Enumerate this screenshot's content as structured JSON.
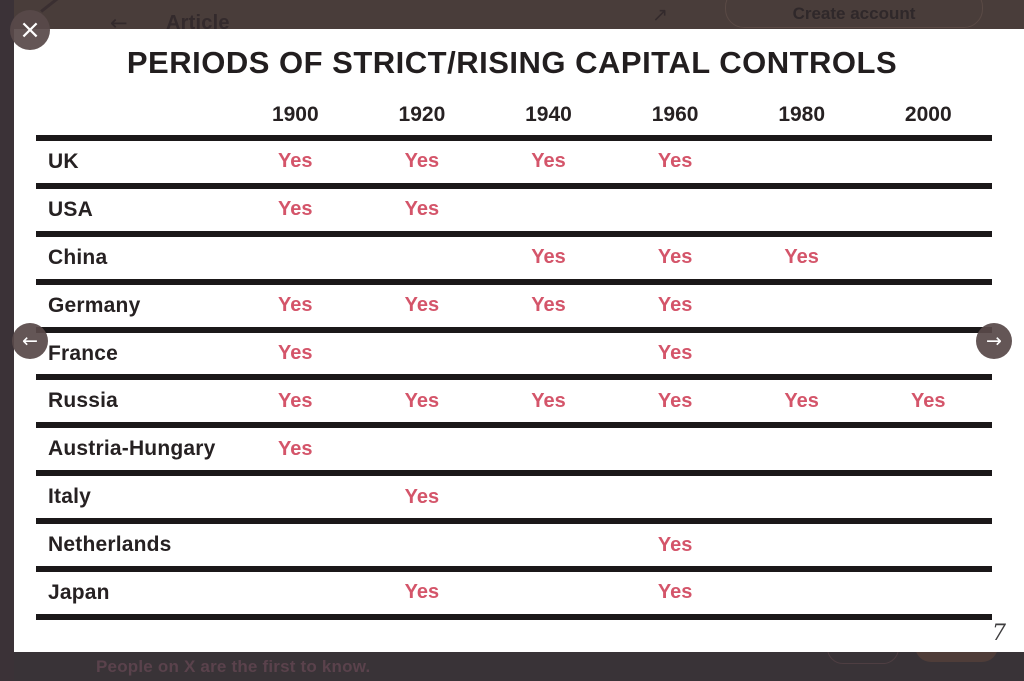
{
  "page_behind": {
    "top_bar": {
      "back_icon": "←",
      "title": "Article",
      "share_icon": "↗",
      "create_account_label": "Create account"
    },
    "bottom_banner": {
      "message": "People on X are the first to know."
    }
  },
  "lightbox": {
    "close_icon": "×",
    "prev_icon": "←",
    "next_icon": "→",
    "page_number": "7"
  },
  "chart_data": {
    "type": "table",
    "title": "PERIODS OF STRICT/RISING CAPITAL CONTROLS",
    "categories": [
      "1900",
      "1920",
      "1940",
      "1960",
      "1980",
      "2000"
    ],
    "rows": [
      {
        "label": "UK",
        "values": [
          "Yes",
          "Yes",
          "Yes",
          "Yes",
          "",
          ""
        ]
      },
      {
        "label": "USA",
        "values": [
          "Yes",
          "Yes",
          "",
          "",
          "",
          ""
        ]
      },
      {
        "label": "China",
        "values": [
          "",
          "",
          "Yes",
          "Yes",
          "Yes",
          ""
        ]
      },
      {
        "label": "Germany",
        "values": [
          "Yes",
          "Yes",
          "Yes",
          "Yes",
          "",
          ""
        ]
      },
      {
        "label": "France",
        "values": [
          "Yes",
          "",
          "",
          "Yes",
          "",
          ""
        ]
      },
      {
        "label": "Russia",
        "values": [
          "Yes",
          "Yes",
          "Yes",
          "Yes",
          "Yes",
          "Yes"
        ]
      },
      {
        "label": "Austria-Hungary",
        "values": [
          "Yes",
          "",
          "",
          "",
          "",
          ""
        ]
      },
      {
        "label": "Italy",
        "values": [
          "",
          "Yes",
          "",
          "",
          "",
          ""
        ]
      },
      {
        "label": "Netherlands",
        "values": [
          "",
          "",
          "",
          "Yes",
          "",
          ""
        ]
      },
      {
        "label": "Japan",
        "values": [
          "",
          "Yes",
          "",
          "Yes",
          "",
          ""
        ]
      }
    ],
    "colors": {
      "yes_text": "#d4556a",
      "label_text": "#262122",
      "grid_line": "#1b1819",
      "overlay_backdrop": "#3b3237"
    }
  }
}
